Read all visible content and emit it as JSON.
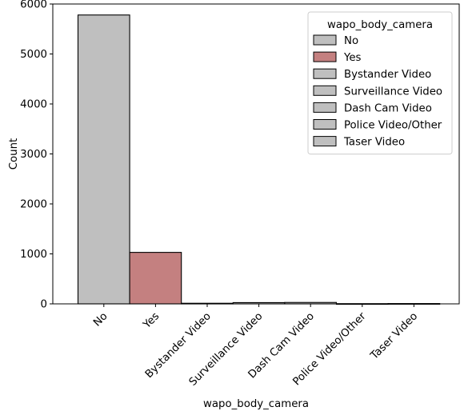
{
  "chart_data": {
    "type": "bar",
    "title": "",
    "xlabel": "wapo_body_camera",
    "ylabel": "Count",
    "ylim": [
      0,
      6000
    ],
    "yticks": [
      0,
      1000,
      2000,
      3000,
      4000,
      5000,
      6000
    ],
    "categories": [
      "No",
      "Yes",
      "Bystander Video",
      "Surveillance Video",
      "Dash Cam Video",
      "Police Video/Other",
      "Taser Video"
    ],
    "values": [
      5780,
      1030,
      12,
      25,
      28,
      4,
      6
    ],
    "colors": [
      "#bfbfbf",
      "#c48080",
      "#bfbfbf",
      "#bfbfbf",
      "#bfbfbf",
      "#bfbfbf",
      "#bfbfbf"
    ],
    "edge_color": "#000000",
    "legend": {
      "title": "wapo_body_camera",
      "position": "top-right",
      "entries": [
        "No",
        "Yes",
        "Bystander Video",
        "Surveillance Video",
        "Dash Cam Video",
        "Police Video/Other",
        "Taser Video"
      ]
    }
  }
}
